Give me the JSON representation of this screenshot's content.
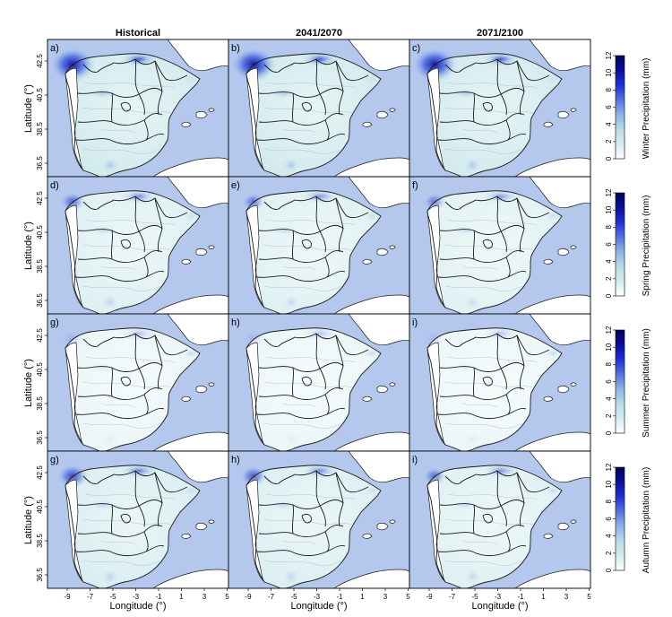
{
  "column_titles": [
    "Historical",
    "2041/2070",
    "2071/2100"
  ],
  "row_colorbar_titles": [
    "Winter Precipitation (mm)",
    "Spring Precipitation (mm)",
    "Summer Precipitation (mm)",
    "Autumn Precipitation (mm)"
  ],
  "panel_labels": [
    [
      "a)",
      "b)",
      "c)"
    ],
    [
      "d)",
      "e)",
      "f)"
    ],
    [
      "g)",
      "h)",
      "i)"
    ],
    [
      "g)",
      "h)",
      "i)"
    ]
  ],
  "y_axis": {
    "label": "Latitude (°)",
    "ticks": [
      "42.5",
      "40.5",
      "38.5",
      "36.5"
    ]
  },
  "x_axis": {
    "label": "Longitude (°)",
    "ticks": [
      "-9",
      "-7",
      "-5",
      "-3",
      "-1",
      "1",
      "3",
      "5"
    ]
  },
  "colorbar": {
    "ticks": [
      "0",
      "2",
      "4",
      "6",
      "8",
      "10",
      "12"
    ],
    "range": [
      0,
      12
    ],
    "gradient_colors": [
      "#ffffff",
      "#d4ecef",
      "#b8dcea",
      "#8fb3e6",
      "#5673e0",
      "#1f2fd6",
      "#0b0e9a",
      "#030355"
    ]
  },
  "colors": {
    "sea": "#b4c8ee",
    "land": "#ffffff",
    "border": "#1a1a1a"
  },
  "season_intensity": [
    [
      1.0,
      1.0,
      1.0
    ],
    [
      0.55,
      0.5,
      0.45
    ],
    [
      0.12,
      0.1,
      0.08
    ],
    [
      0.7,
      0.6,
      0.5
    ]
  ]
}
